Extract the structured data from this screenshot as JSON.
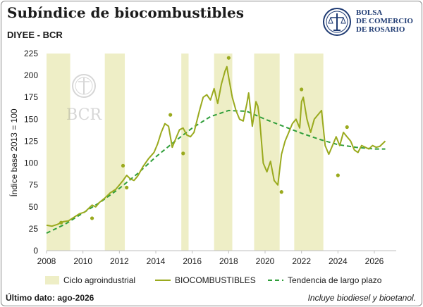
{
  "header": {
    "title": "Subíndice de biocombustibles",
    "subtitle": "DIYEE - BCR"
  },
  "logo": {
    "line1": "BOLSA",
    "line2": "DE COMERCIO",
    "line3": "DE ROSARIO",
    "icon": "bcr-seal-icon",
    "watermark_text": "BCR"
  },
  "footer": {
    "last_data": "Último dato: ago-2026",
    "note": "Incluye biodiesel y bioetanol."
  },
  "colors": {
    "band": "#eeeec6",
    "series": "#9aaa1e",
    "trend": "#2f9e3a",
    "logo": "#1f3b73"
  },
  "chart_data": {
    "type": "line",
    "ylabel": "Índice base 2013 = 100",
    "xlabel": "",
    "xlim": [
      2008,
      2027.2
    ],
    "ylim": [
      0,
      225
    ],
    "x_ticks": [
      2008,
      2010,
      2012,
      2014,
      2016,
      2018,
      2020,
      2022,
      2024,
      2026
    ],
    "y_ticks": [
      0,
      25,
      50,
      75,
      100,
      125,
      150,
      175,
      200,
      225
    ],
    "grid": false,
    "legend_position": "bottom",
    "legend": [
      "Ciclo agroindustrial",
      "BIOCOMBUSTIBLES",
      "Tendencia de largo plazo"
    ],
    "bands": [
      [
        2008.0,
        2009.3
      ],
      [
        2011.2,
        2012.3
      ],
      [
        2015.4,
        2015.8
      ],
      [
        2017.2,
        2018.2
      ],
      [
        2019.4,
        2020.8
      ],
      [
        2021.6,
        2023.2
      ]
    ],
    "series": [
      {
        "name": "BIOCOMBUSTIBLES",
        "x": [
          2008.0,
          2008.3,
          2008.6,
          2008.9,
          2009.2,
          2009.5,
          2009.8,
          2010.1,
          2010.3,
          2010.5,
          2010.7,
          2010.9,
          2011.2,
          2011.5,
          2011.8,
          2012.0,
          2012.2,
          2012.4,
          2012.6,
          2012.8,
          2013.0,
          2013.3,
          2013.6,
          2013.9,
          2014.1,
          2014.3,
          2014.5,
          2014.7,
          2014.9,
          2015.1,
          2015.3,
          2015.5,
          2015.7,
          2015.9,
          2016.1,
          2016.4,
          2016.6,
          2016.8,
          2017.0,
          2017.2,
          2017.4,
          2017.6,
          2017.8,
          2017.9,
          2018.0,
          2018.2,
          2018.4,
          2018.6,
          2018.8,
          2019.0,
          2019.1,
          2019.3,
          2019.5,
          2019.6,
          2019.7,
          2019.9,
          2020.1,
          2020.3,
          2020.5,
          2020.7,
          2020.9,
          2021.1,
          2021.3,
          2021.5,
          2021.7,
          2021.9,
          2022.0,
          2022.1,
          2022.3,
          2022.5,
          2022.7,
          2022.9,
          2023.1,
          2023.3,
          2023.5,
          2023.7,
          2023.9,
          2024.1,
          2024.3,
          2024.5,
          2024.7,
          2024.9,
          2025.1,
          2025.3,
          2025.5,
          2025.7,
          2025.9,
          2026.1,
          2026.3,
          2026.6
        ],
        "values": [
          29,
          28,
          30,
          33,
          34,
          38,
          42,
          44,
          48,
          52,
          50,
          55,
          60,
          66,
          70,
          75,
          80,
          86,
          82,
          80,
          85,
          96,
          105,
          112,
          122,
          135,
          145,
          142,
          118,
          128,
          138,
          140,
          132,
          130,
          135,
          160,
          175,
          178,
          172,
          185,
          168,
          190,
          205,
          210,
          198,
          175,
          160,
          150,
          148,
          168,
          180,
          142,
          170,
          165,
          150,
          100,
          90,
          102,
          80,
          75,
          110,
          125,
          135,
          145,
          150,
          140,
          170,
          175,
          150,
          135,
          150,
          155,
          160,
          120,
          110,
          120,
          130,
          120,
          135,
          130,
          125,
          115,
          112,
          120,
          118,
          116,
          120,
          118,
          119,
          125
        ]
      },
      {
        "name": "Tendencia de largo plazo",
        "x": [
          2008.0,
          2009.0,
          2010.0,
          2011.0,
          2012.0,
          2013.0,
          2014.0,
          2015.0,
          2016.0,
          2017.0,
          2018.0,
          2019.0,
          2020.0,
          2021.0,
          2022.0,
          2023.0,
          2024.0,
          2025.0,
          2026.0,
          2026.6
        ],
        "values": [
          20,
          30,
          43,
          56,
          71,
          88,
          107,
          124,
          140,
          153,
          160,
          159,
          150,
          142,
          134,
          127,
          121,
          118,
          116,
          116
        ]
      }
    ],
    "dots": {
      "x": [
        2008.8,
        2010.5,
        2012.2,
        2012.4,
        2014.8,
        2015.5,
        2018.0,
        2020.9,
        2022.0,
        2024.0,
        2024.5
      ],
      "values": [
        32,
        37,
        97,
        72,
        155,
        111,
        220,
        67,
        184,
        86,
        141
      ]
    }
  }
}
